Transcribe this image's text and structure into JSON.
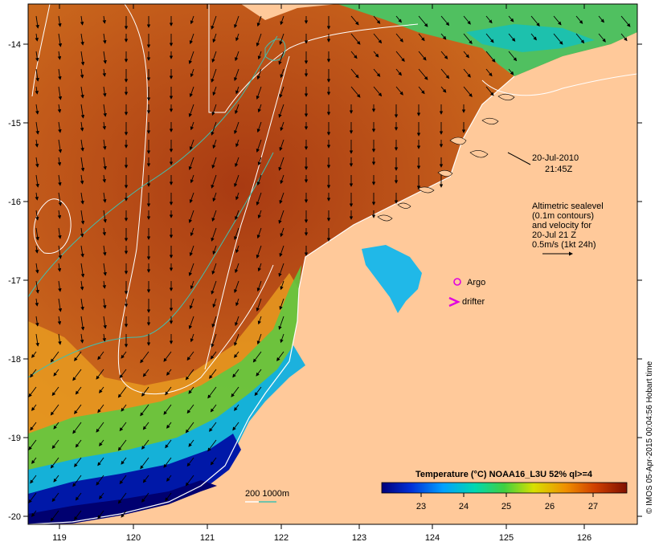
{
  "map": {
    "lon_ticks": [
      "119",
      "120",
      "121",
      "122",
      "123",
      "124",
      "125",
      "126"
    ],
    "lat_ticks": [
      "-14",
      "-15",
      "-16",
      "-17",
      "-18",
      "-19",
      "-20"
    ],
    "datetime_line1": "20-Jul-2010",
    "datetime_line2": "21:45Z",
    "altimetry_lines": [
      "Altimetric sealevel",
      "(0.1m contours)",
      "and velocity for",
      "20-Jul 21 Z",
      "0.5m/s (1kt 24h)"
    ],
    "legend_argo": "Argo",
    "legend_drifter": "drifter",
    "depth_contours_label": "200 1000m",
    "colorbar_title": "Temperature (°C) NOAA16_L3U 52% ql>=4",
    "colorbar_ticks": [
      "23",
      "24",
      "25",
      "26",
      "27"
    ],
    "credit": "© IMOS 05-Apr-2015 00:04:56 Hobart time",
    "colors": {
      "land": "#ffc99a",
      "contour_sealevel": "#ffffff",
      "contour_isobath": "#40c0b0",
      "argo": "#e000e0",
      "drifter": "#e000e0",
      "arrow": "#000000"
    }
  }
}
